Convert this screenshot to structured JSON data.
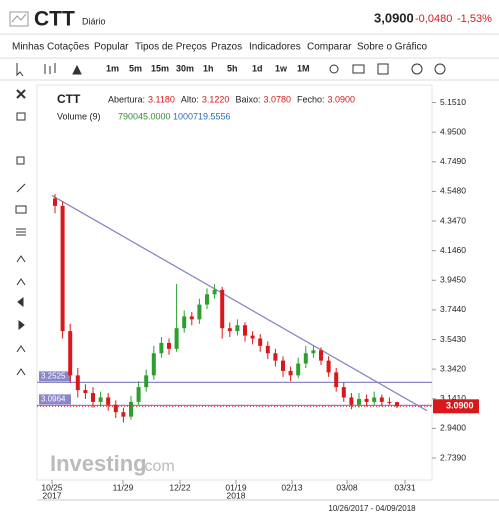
{
  "header": {
    "symbol": "CTT",
    "period": "Diário",
    "price": "3,0900",
    "change": "-0,0480",
    "change_pct": "-1,53%"
  },
  "menu": [
    "Minhas Cotações",
    "Popular",
    "Tipos de Preços",
    "Prazos",
    "Indicadores",
    "Comparar",
    "Sobre o Gráfico"
  ],
  "intervals": [
    "1m",
    "5m",
    "15m",
    "30m",
    "1h",
    "5h",
    "1d",
    "1w",
    "1M"
  ],
  "chart": {
    "symbol": "CTT",
    "legend": [
      {
        "label": "Abertura:",
        "value": "3.1180"
      },
      {
        "label": "Alto:",
        "value": "3.1220"
      },
      {
        "label": "Baixo:",
        "value": "3.0780"
      },
      {
        "label": "Fecho:",
        "value": "3.0900"
      }
    ],
    "volume_label": "Volume (9)",
    "volume_values": [
      "790045.0000",
      "1000719.5556"
    ],
    "ylim": [
      2.59,
      5.27
    ],
    "yticks": [
      {
        "value": 5.151,
        "label": "5.1510"
      },
      {
        "value": 4.95,
        "label": "4.9500"
      },
      {
        "value": 4.749,
        "label": "4.7490"
      },
      {
        "value": 4.548,
        "label": "4.5480"
      },
      {
        "value": 4.347,
        "label": "4.3470"
      },
      {
        "value": 4.146,
        "label": "4.1460"
      },
      {
        "value": 3.945,
        "label": "3.9450"
      },
      {
        "value": 3.744,
        "label": "3.7440"
      },
      {
        "value": 3.543,
        "label": "3.5430"
      },
      {
        "value": 3.342,
        "label": "3.3420"
      },
      {
        "value": 3.141,
        "label": "3.1410"
      },
      {
        "value": 2.94,
        "label": "2.9400"
      },
      {
        "value": 2.739,
        "label": "2.7390"
      }
    ],
    "xticks": [
      "10/25",
      "11/29",
      "12/22",
      "01/19",
      "02/13",
      "03/08",
      "03/31"
    ],
    "years": [
      "2017",
      "2018"
    ],
    "levels": [
      3.2525,
      3.0964
    ],
    "last_price": {
      "value": 3.09,
      "label": "3.0900"
    },
    "trendline": [
      4.52,
      3.06
    ],
    "candles": [
      [
        4.5,
        4.53,
        4.4,
        4.45
      ],
      [
        4.45,
        4.48,
        3.55,
        3.6
      ],
      [
        3.6,
        3.65,
        3.25,
        3.3
      ],
      [
        3.3,
        3.35,
        3.15,
        3.2
      ],
      [
        3.2,
        3.24,
        3.14,
        3.18
      ],
      [
        3.18,
        3.22,
        3.08,
        3.12
      ],
      [
        3.12,
        3.19,
        3.09,
        3.15
      ],
      [
        3.15,
        3.18,
        3.06,
        3.1
      ],
      [
        3.1,
        3.13,
        3.01,
        3.05
      ],
      [
        3.05,
        3.08,
        2.98,
        3.02
      ],
      [
        3.02,
        3.16,
        3.0,
        3.12
      ],
      [
        3.12,
        3.26,
        3.1,
        3.22
      ],
      [
        3.22,
        3.34,
        3.19,
        3.3
      ],
      [
        3.3,
        3.5,
        3.27,
        3.45
      ],
      [
        3.45,
        3.56,
        3.42,
        3.52
      ],
      [
        3.52,
        3.55,
        3.44,
        3.48
      ],
      [
        3.48,
        3.92,
        3.46,
        3.62
      ],
      [
        3.62,
        3.74,
        3.59,
        3.7
      ],
      [
        3.7,
        3.73,
        3.64,
        3.68
      ],
      [
        3.68,
        3.82,
        3.65,
        3.78
      ],
      [
        3.78,
        3.89,
        3.75,
        3.85
      ],
      [
        3.85,
        3.92,
        3.82,
        3.88
      ],
      [
        3.88,
        3.9,
        3.55,
        3.62
      ],
      [
        3.62,
        3.66,
        3.56,
        3.6
      ],
      [
        3.6,
        3.68,
        3.57,
        3.64
      ],
      [
        3.64,
        3.66,
        3.53,
        3.57
      ],
      [
        3.57,
        3.6,
        3.51,
        3.55
      ],
      [
        3.55,
        3.58,
        3.46,
        3.5
      ],
      [
        3.5,
        3.53,
        3.41,
        3.45
      ],
      [
        3.45,
        3.48,
        3.36,
        3.4
      ],
      [
        3.4,
        3.43,
        3.29,
        3.33
      ],
      [
        3.33,
        3.36,
        3.26,
        3.3
      ],
      [
        3.3,
        3.42,
        3.28,
        3.38
      ],
      [
        3.38,
        3.5,
        3.35,
        3.45
      ],
      [
        3.45,
        3.5,
        3.42,
        3.47
      ],
      [
        3.47,
        3.49,
        3.37,
        3.4
      ],
      [
        3.4,
        3.43,
        3.29,
        3.32
      ],
      [
        3.32,
        3.35,
        3.19,
        3.22
      ],
      [
        3.22,
        3.25,
        3.12,
        3.15
      ],
      [
        3.15,
        3.18,
        3.07,
        3.1
      ],
      [
        3.1,
        3.18,
        3.08,
        3.14
      ],
      [
        3.14,
        3.17,
        3.09,
        3.12
      ],
      [
        3.12,
        3.19,
        3.1,
        3.15
      ],
      [
        3.15,
        3.17,
        3.09,
        3.12
      ],
      [
        3.12,
        3.15,
        3.1,
        3.118
      ],
      [
        3.118,
        3.122,
        3.078,
        3.09
      ]
    ],
    "logo": "Investing",
    "logo_suffix": ".com",
    "date_range": "10/26/2017 - 04/09/2018"
  }
}
